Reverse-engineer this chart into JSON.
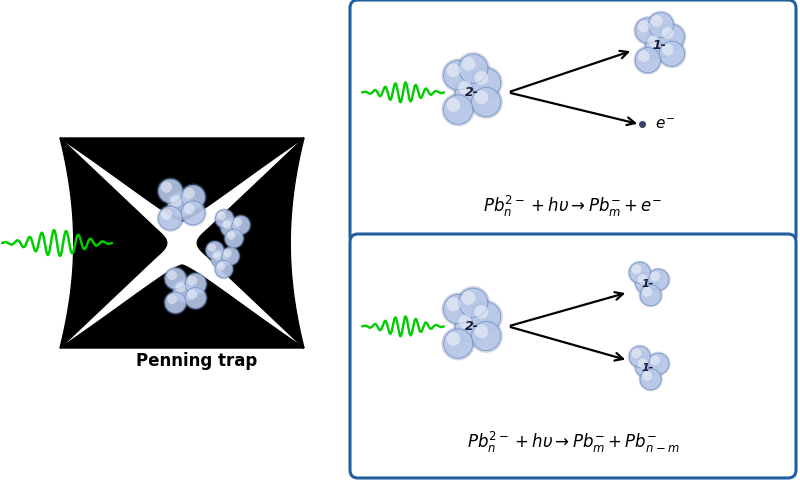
{
  "background_color": "#ffffff",
  "trap_color": "#000000",
  "laser_color": "#00cc00",
  "box_edge_color": "#2060a0",
  "box_face_color": "#ffffff",
  "penning_label": "Penning trap",
  "figsize": [
    8.0,
    4.87
  ],
  "dpi": 100
}
